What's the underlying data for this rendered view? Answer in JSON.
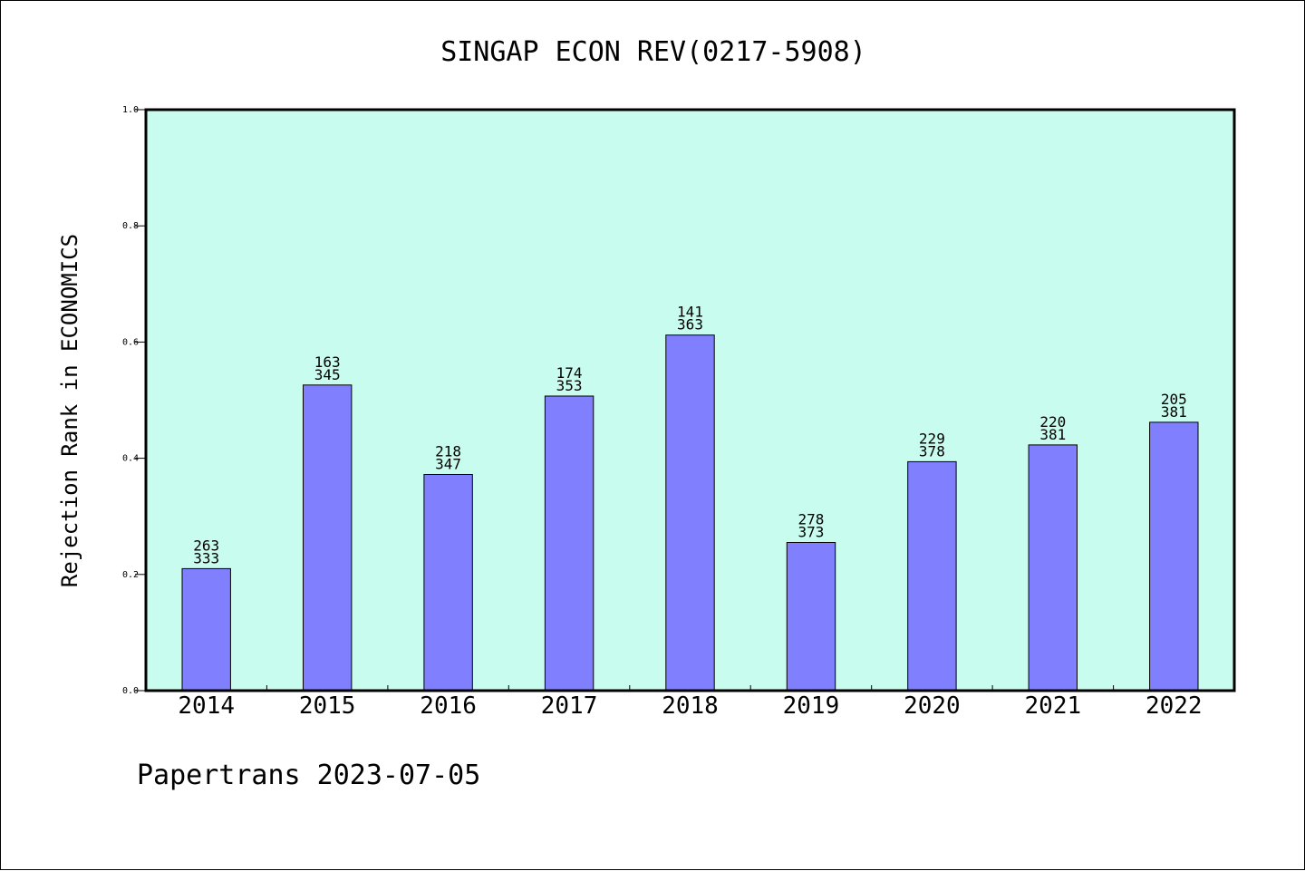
{
  "colors": {
    "plot_background": "#c8fcee",
    "bar_fill": "#8080ff",
    "bar_stroke": "#000000",
    "axis": "#000000"
  },
  "chart_data": {
    "type": "bar",
    "title": "SINGAP ECON REV(0217-5908)",
    "xlabel": "",
    "ylabel": "Rejection Rank in ECONOMICS",
    "ylim": [
      0,
      1.0
    ],
    "yticks": [
      "0.0",
      "0.2",
      "0.4",
      "0.6",
      "0.8",
      "1.0"
    ],
    "grid": false,
    "categories": [
      "2014",
      "2015",
      "2016",
      "2017",
      "2018",
      "2019",
      "2020",
      "2021",
      "2022"
    ],
    "values": [
      0.21,
      0.526,
      0.372,
      0.507,
      0.612,
      0.255,
      0.394,
      0.423,
      0.462
    ],
    "rank_labels": [
      "263",
      "163",
      "218",
      "174",
      "141",
      "278",
      "229",
      "220",
      "205"
    ],
    "total_labels": [
      "333",
      "345",
      "347",
      "353",
      "363",
      "373",
      "378",
      "381",
      "381"
    ]
  },
  "footer": "Papertrans 2023-07-05"
}
